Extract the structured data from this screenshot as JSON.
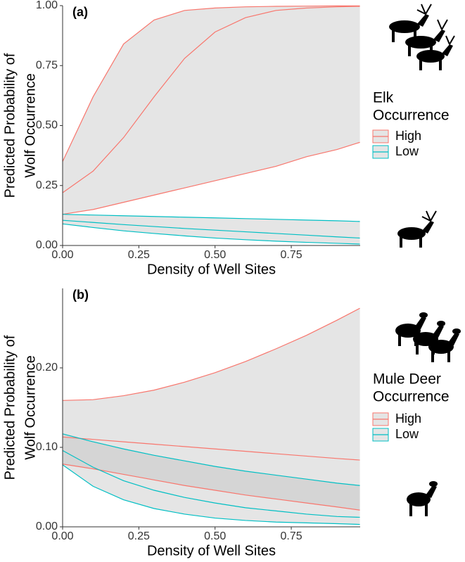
{
  "chart_data": [
    {
      "type": "line",
      "panel_label": "(a)",
      "xlabel": "Density of Well Sites",
      "ylabel": [
        "Predicted Probability of",
        "Wolf Occurrence"
      ],
      "legend_title": [
        "Elk",
        "Occurrence"
      ],
      "x": [
        0,
        0.1,
        0.2,
        0.3,
        0.4,
        0.5,
        0.6,
        0.7,
        0.8,
        0.9,
        0.975
      ],
      "xlim": [
        0,
        0.976
      ],
      "xticks": [
        {
          "value": 0,
          "label": "0.00"
        },
        {
          "value": 0.25,
          "label": "0.25"
        },
        {
          "value": 0.5,
          "label": "0.50"
        },
        {
          "value": 0.75,
          "label": "0.75"
        }
      ],
      "ylim": [
        0,
        1
      ],
      "yticks": [
        {
          "value": 0,
          "label": "0.00"
        },
        {
          "value": 0.25,
          "label": "0.25"
        },
        {
          "value": 0.5,
          "label": "0.50"
        },
        {
          "value": 0.75,
          "label": "0.75"
        },
        {
          "value": 1,
          "label": "1.00"
        }
      ],
      "series": [
        {
          "name": "High",
          "color": "#f8766d",
          "upper": [
            0.35,
            0.62,
            0.84,
            0.94,
            0.98,
            0.99,
            0.995,
            0.997,
            0.998,
            0.999,
            0.999
          ],
          "values": [
            0.22,
            0.31,
            0.45,
            0.62,
            0.78,
            0.89,
            0.95,
            0.98,
            0.99,
            0.995,
            0.997
          ],
          "lower": [
            0.13,
            0.15,
            0.18,
            0.21,
            0.24,
            0.27,
            0.3,
            0.33,
            0.37,
            0.4,
            0.43
          ]
        },
        {
          "name": "Low",
          "color": "#00bfc4",
          "upper": [
            0.13,
            0.127,
            0.124,
            0.121,
            0.118,
            0.115,
            0.112,
            0.109,
            0.106,
            0.103,
            0.1
          ],
          "values": [
            0.105,
            0.096,
            0.087,
            0.079,
            0.071,
            0.064,
            0.057,
            0.05,
            0.043,
            0.036,
            0.031
          ],
          "lower": [
            0.09,
            0.075,
            0.061,
            0.05,
            0.04,
            0.031,
            0.024,
            0.018,
            0.013,
            0.009,
            0.006
          ]
        }
      ]
    },
    {
      "type": "line",
      "panel_label": "(b)",
      "xlabel": "Density of Well Sites",
      "ylabel": [
        "Predicted Probability of",
        "Wolf Occurrence"
      ],
      "legend_title": [
        "Mule Deer",
        "Occurrence"
      ],
      "x": [
        0,
        0.1,
        0.2,
        0.3,
        0.4,
        0.5,
        0.6,
        0.7,
        0.8,
        0.9,
        0.975
      ],
      "xlim": [
        0,
        0.976
      ],
      "xticks": [
        {
          "value": 0,
          "label": "0.00"
        },
        {
          "value": 0.25,
          "label": "0.25"
        },
        {
          "value": 0.5,
          "label": "0.50"
        },
        {
          "value": 0.75,
          "label": "0.75"
        }
      ],
      "ylim": [
        0,
        0.3
      ],
      "yticks": [
        {
          "value": 0,
          "label": "0.00"
        },
        {
          "value": 0.1,
          "label": "0.10"
        },
        {
          "value": 0.2,
          "label": "0.20"
        }
      ],
      "series": [
        {
          "name": "High",
          "color": "#f8766d",
          "upper": [
            0.159,
            0.16,
            0.165,
            0.172,
            0.182,
            0.194,
            0.208,
            0.224,
            0.241,
            0.26,
            0.275
          ],
          "values": [
            0.113,
            0.11,
            0.107,
            0.104,
            0.101,
            0.098,
            0.095,
            0.092,
            0.089,
            0.086,
            0.084
          ],
          "lower": [
            0.079,
            0.073,
            0.066,
            0.059,
            0.052,
            0.046,
            0.04,
            0.035,
            0.03,
            0.025,
            0.021
          ]
        },
        {
          "name": "Low",
          "color": "#00bfc4",
          "upper": [
            0.117,
            0.107,
            0.098,
            0.09,
            0.083,
            0.076,
            0.07,
            0.065,
            0.06,
            0.055,
            0.052
          ],
          "values": [
            0.096,
            0.075,
            0.058,
            0.046,
            0.037,
            0.03,
            0.024,
            0.02,
            0.016,
            0.013,
            0.012
          ],
          "lower": [
            0.078,
            0.051,
            0.034,
            0.023,
            0.016,
            0.011,
            0.008,
            0.006,
            0.005,
            0.004,
            0.003
          ]
        }
      ]
    }
  ]
}
